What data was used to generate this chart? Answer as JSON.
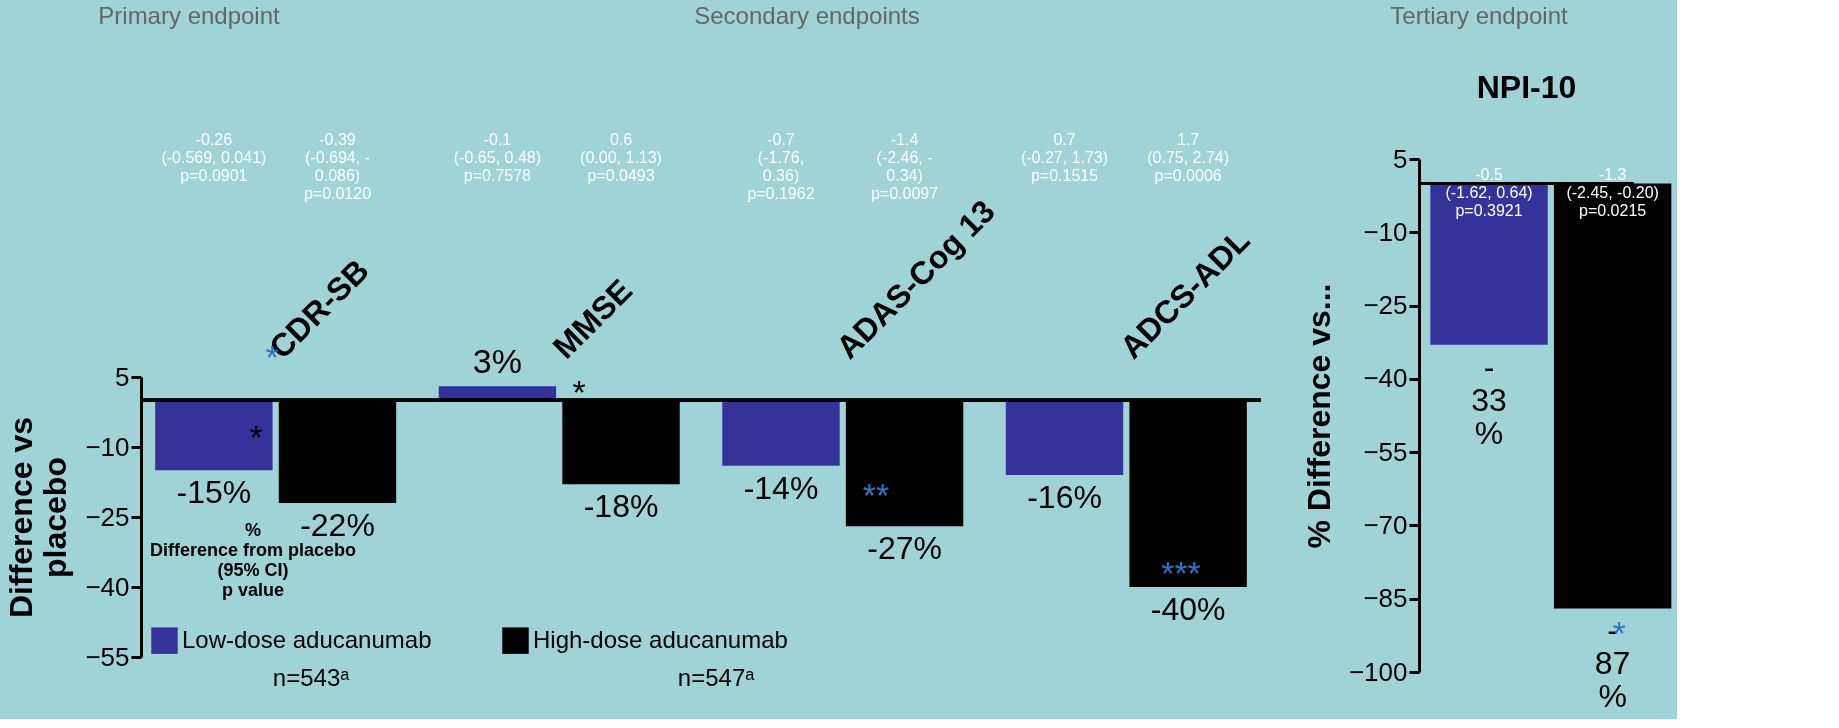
{
  "chart_data": [
    {
      "type": "bar",
      "ylabel": "Difference vs\nplacebo",
      "categories": [
        "CDR-SB",
        "MMSE",
        "ADAS-Cog 13",
        "ADCS-ADL"
      ],
      "series": [
        {
          "name": "Low-dose aducanumab",
          "color": "#35339a",
          "values": [
            -15,
            3,
            -14,
            -16
          ],
          "value_labels": [
            "-15%",
            "3%",
            "-14%",
            "-16%"
          ]
        },
        {
          "name": "High-dose aducanumab",
          "color": "#000000",
          "values": [
            -22,
            -18,
            -27,
            -40
          ],
          "value_labels": [
            "-22%",
            "-18%",
            "-27%",
            "-40%"
          ]
        }
      ],
      "ylim": [
        -55,
        5
      ],
      "yticks": [
        5,
        -10,
        -25,
        -40,
        -55
      ],
      "grid": false,
      "legend": "bottom left",
      "annotations": [
        "-0.26\n(-0.569, 0.041)\np=0.0901",
        "-0.39\n(-0.694, -\n0.086)\np=0.0120",
        "-0.1\n(-0.65, 0.48)\np=0.7578",
        "0.6\n(0.00, 1.13)\np=0.0493",
        "-0.7\n(-1.76,\n0.36)\np=0.1962",
        "-1.4\n(-2.46, -\n0.34)\np=0.0097",
        "0.7\n(-0.27, 1.73)\np=0.1515",
        "1.7\n(0.75, 2.74)\np=0.0006",
        "%\nDifference from placebo\n(95% CI)\np value",
        "Primary endpoint",
        "Secondary endpoints",
        "*",
        "*",
        "*",
        "**",
        "***",
        "n=543ᵃ",
        "n=547ᵃ"
      ]
    },
    {
      "type": "bar",
      "title": "NPI-10",
      "ylabel": "% Difference vs...",
      "categories": [
        null
      ],
      "series": [
        {
          "color": "#35339a",
          "values": [
            -33
          ],
          "value_labels": [
            "-\n33\n%"
          ]
        },
        {
          "color": "#000000",
          "values": [
            -87
          ],
          "value_labels": [
            "-\n87\n%"
          ]
        }
      ],
      "ylim": [
        -100,
        5
      ],
      "yticks": [
        5,
        -10,
        -25,
        -40,
        -55,
        -70,
        -85,
        -100
      ],
      "grid": false,
      "annotations": [
        "-0.5\n(-1.62, 0.64)\np=0.3921",
        "-1.3\n(-2.45, -0.20)\np=0.0215",
        "Tertiary endpoint",
        "*"
      ]
    }
  ]
}
